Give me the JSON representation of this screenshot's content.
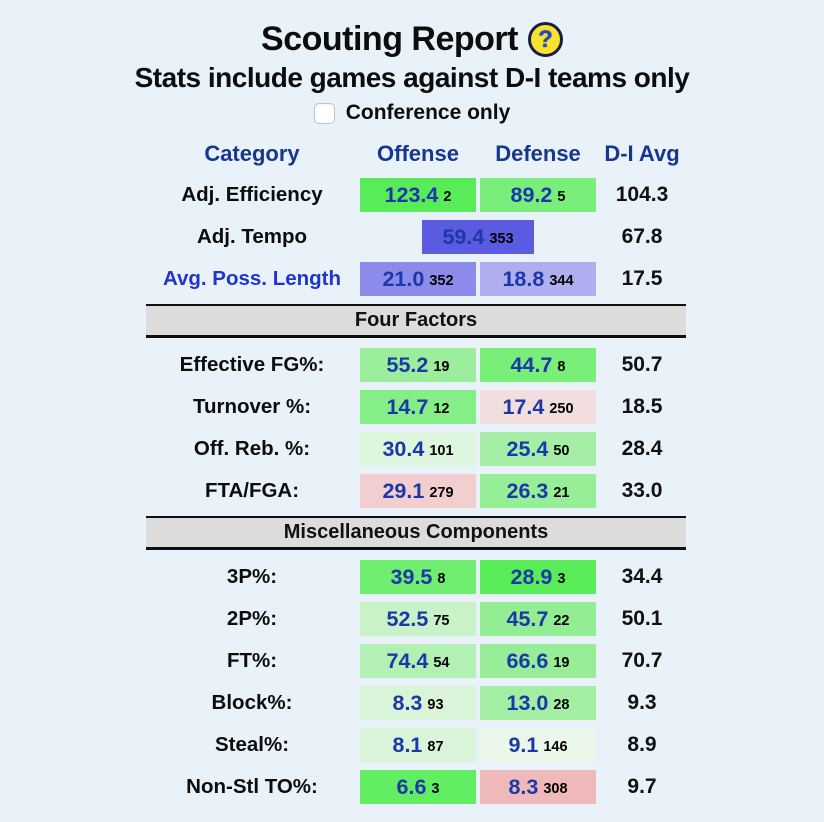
{
  "colors": {
    "page_bg": "#e9f2f9",
    "header_text": "#16368f",
    "value_text": "#1b38a8",
    "link_text": "#2135cc",
    "rank_text": "#000000",
    "section_bg": "#dcdcdc",
    "help_icon_bg": "#f6e32e",
    "help_icon_mark": "#2546d4"
  },
  "header": {
    "title": "Scouting Report",
    "help_icon_glyph": "?",
    "subtitle": "Stats include games against D-I teams only",
    "conference_label": "Conference only",
    "conference_checked": false
  },
  "table": {
    "columns": {
      "category": "Category",
      "offense": "Offense",
      "defense": "Defense",
      "avg": "D-I Avg"
    },
    "rows": [
      {
        "type": "stat",
        "label": "Adj. Efficiency",
        "offense": {
          "value": "123.4",
          "rank": "2",
          "bg": "#58ed58"
        },
        "defense": {
          "value": "89.2",
          "rank": "5",
          "bg": "#7aee7a"
        },
        "avg": "104.3"
      },
      {
        "type": "tempo",
        "label": "Adj. Tempo",
        "center": {
          "value": "59.4",
          "rank": "353",
          "bg": "#5b5be2"
        },
        "avg": "67.8"
      },
      {
        "type": "stat",
        "label": "Avg. Poss. Length",
        "link": true,
        "offense": {
          "value": "21.0",
          "rank": "352",
          "bg": "#8b8bec"
        },
        "defense": {
          "value": "18.8",
          "rank": "344",
          "bg": "#aeaef0"
        },
        "avg": "17.5"
      },
      {
        "type": "section",
        "label": "Four Factors"
      },
      {
        "type": "stat",
        "label": "Effective FG%:",
        "offense": {
          "value": "55.2",
          "rank": "19",
          "bg": "#9bee9b"
        },
        "defense": {
          "value": "44.7",
          "rank": "8",
          "bg": "#79ee79"
        },
        "avg": "50.7"
      },
      {
        "type": "stat",
        "label": "Turnover %:",
        "offense": {
          "value": "14.7",
          "rank": "12",
          "bg": "#86ee86"
        },
        "defense": {
          "value": "17.4",
          "rank": "250",
          "bg": "#f2dede"
        },
        "avg": "18.5"
      },
      {
        "type": "stat",
        "label": "Off. Reb. %:",
        "offense": {
          "value": "30.4",
          "rank": "101",
          "bg": "#def5de"
        },
        "defense": {
          "value": "25.4",
          "rank": "50",
          "bg": "#a6eea6"
        },
        "avg": "28.4"
      },
      {
        "type": "stat",
        "label": "FTA/FGA:",
        "offense": {
          "value": "29.1",
          "rank": "279",
          "bg": "#f2cece"
        },
        "defense": {
          "value": "26.3",
          "rank": "21",
          "bg": "#96ee96"
        },
        "avg": "33.0"
      },
      {
        "type": "section",
        "label": "Miscellaneous Components"
      },
      {
        "type": "stat",
        "label": "3P%:",
        "offense": {
          "value": "39.5",
          "rank": "8",
          "bg": "#6fee6f"
        },
        "defense": {
          "value": "28.9",
          "rank": "3",
          "bg": "#58ed58"
        },
        "avg": "34.4"
      },
      {
        "type": "stat",
        "label": "2P%:",
        "offense": {
          "value": "52.5",
          "rank": "75",
          "bg": "#c9f2c9"
        },
        "defense": {
          "value": "45.7",
          "rank": "22",
          "bg": "#93ee93"
        },
        "avg": "50.1"
      },
      {
        "type": "stat",
        "label": "FT%:",
        "offense": {
          "value": "74.4",
          "rank": "54",
          "bg": "#b3f0b3"
        },
        "defense": {
          "value": "66.6",
          "rank": "19",
          "bg": "#98ee98"
        },
        "avg": "70.7"
      },
      {
        "type": "stat",
        "label": "Block%:",
        "offense": {
          "value": "8.3",
          "rank": "93",
          "bg": "#d9f4d9"
        },
        "defense": {
          "value": "13.0",
          "rank": "28",
          "bg": "#a3eea3"
        },
        "avg": "9.3"
      },
      {
        "type": "stat",
        "label": "Steal%:",
        "offense": {
          "value": "8.1",
          "rank": "87",
          "bg": "#daf4da"
        },
        "defense": {
          "value": "9.1",
          "rank": "146",
          "bg": "#eaf7ea"
        },
        "avg": "8.9"
      },
      {
        "type": "stat",
        "label": "Non-Stl TO%:",
        "offense": {
          "value": "6.6",
          "rank": "3",
          "bg": "#62ee62"
        },
        "defense": {
          "value": "8.3",
          "rank": "308",
          "bg": "#f0b9b9"
        },
        "avg": "9.7"
      }
    ]
  }
}
